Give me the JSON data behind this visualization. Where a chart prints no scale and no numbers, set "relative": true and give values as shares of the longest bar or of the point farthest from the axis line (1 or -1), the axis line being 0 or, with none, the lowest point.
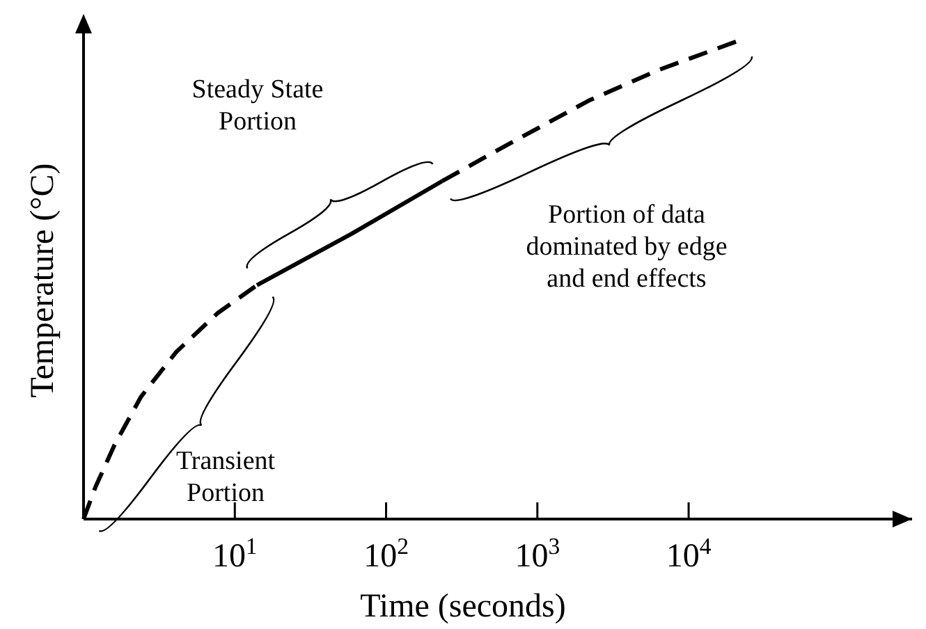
{
  "chart_data": {
    "type": "line",
    "relative": true,
    "log": "x",
    "xlabel": "Time (seconds)",
    "ylabel": "Temperature (°C)",
    "xlim": [
      1,
      300000
    ],
    "xticks": [
      {
        "value": 10,
        "label": "10$^{1}$"
      },
      {
        "value": 100,
        "label": "10$^{2}$"
      },
      {
        "value": 1000,
        "label": "10$^{3}$"
      },
      {
        "value": 10000,
        "label": "10$^{4}$"
      }
    ],
    "series": [
      {
        "color": "#000000",
        "line_style": "dashed",
        "x": [
          1,
          1.2,
          1.6,
          2.4,
          4.1,
          7.7,
          14
        ],
        "values": [
          0,
          0.067,
          0.154,
          0.255,
          0.348,
          0.429,
          0.487
        ]
      },
      {
        "color": "#000000",
        "line_style": "solid",
        "x": [
          14,
          59,
          235
        ],
        "values": [
          0.487,
          0.594,
          0.704
        ]
      },
      {
        "color": "#000000",
        "line_style": "dashed",
        "x": [
          235,
          612,
          2200,
          6400,
          23000
        ],
        "values": [
          0.704,
          0.777,
          0.872,
          0.936,
          1
        ]
      }
    ],
    "annotations": [
      "Transient Portion",
      "Steady State Portion",
      "Portion of data dominated by edge and end effects"
    ],
    "tick_labels": "x"
  }
}
